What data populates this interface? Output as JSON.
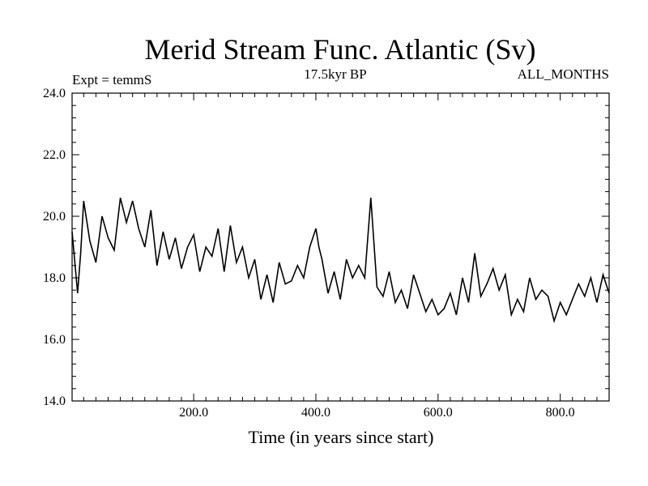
{
  "chart_data": {
    "type": "line",
    "title": "Merid Stream Func. Atlantic (Sv)",
    "subtitle_left": "Expt = temmS",
    "subtitle_center": "17.5kyr BP",
    "subtitle_right": "ALL_MONTHS",
    "xlabel": "Time (in years since start)",
    "ylabel": "",
    "xlim": [
      1,
      880
    ],
    "ylim": [
      14,
      24
    ],
    "x_ticks": [
      200,
      400,
      600,
      800
    ],
    "x_tick_labels": [
      "200.0",
      "400.0",
      "600.0",
      "800.0"
    ],
    "y_ticks": [
      14,
      16,
      18,
      20,
      22,
      24
    ],
    "y_tick_labels": [
      "14.0",
      "16.0",
      "18.0",
      "20.0",
      "22.0",
      "24.0"
    ],
    "grid": false,
    "legend": "none",
    "line_color": "#000000",
    "series": [
      {
        "x": [
          1,
          10,
          15,
          20,
          30,
          40,
          50,
          60,
          70,
          80,
          90,
          100,
          110,
          120,
          130,
          140,
          150,
          160,
          170,
          180,
          190,
          200,
          210,
          220,
          230,
          240,
          250,
          260,
          270,
          280,
          290,
          300,
          310,
          320,
          330,
          340,
          350,
          360,
          370,
          380,
          390,
          400,
          405,
          410,
          420,
          430,
          440,
          450,
          460,
          470,
          480,
          490,
          500,
          510,
          520,
          530,
          540,
          550,
          560,
          570,
          580,
          590,
          600,
          610,
          620,
          630,
          640,
          650,
          660,
          670,
          680,
          690,
          700,
          710,
          720,
          730,
          740,
          750,
          760,
          770,
          780,
          790,
          800,
          810,
          820,
          830,
          840,
          850,
          860,
          870,
          880
        ],
        "y": [
          19.5,
          17.5,
          18.8,
          20.5,
          19.2,
          18.5,
          20.0,
          19.3,
          18.9,
          20.6,
          19.8,
          20.5,
          19.6,
          19.0,
          20.2,
          18.4,
          19.5,
          18.6,
          19.3,
          18.3,
          19.0,
          19.4,
          18.2,
          19.0,
          18.7,
          19.6,
          18.2,
          19.7,
          18.5,
          19.0,
          18.0,
          18.6,
          17.3,
          18.1,
          17.2,
          18.5,
          17.8,
          17.9,
          18.4,
          18.0,
          19.0,
          19.6,
          19.0,
          18.6,
          17.5,
          18.2,
          17.3,
          18.6,
          18.0,
          18.4,
          18.0,
          20.6,
          17.7,
          17.4,
          18.2,
          17.2,
          17.6,
          17.0,
          18.1,
          17.5,
          16.9,
          17.3,
          16.8,
          17.0,
          17.5,
          16.8,
          18.0,
          17.2,
          18.8,
          17.4,
          17.8,
          18.3,
          17.6,
          18.1,
          16.8,
          17.3,
          16.9,
          18.0,
          17.3,
          17.6,
          17.4,
          16.6,
          17.2,
          16.8,
          17.3,
          17.8,
          17.4,
          18.0,
          17.2,
          18.1,
          17.5
        ]
      }
    ]
  }
}
